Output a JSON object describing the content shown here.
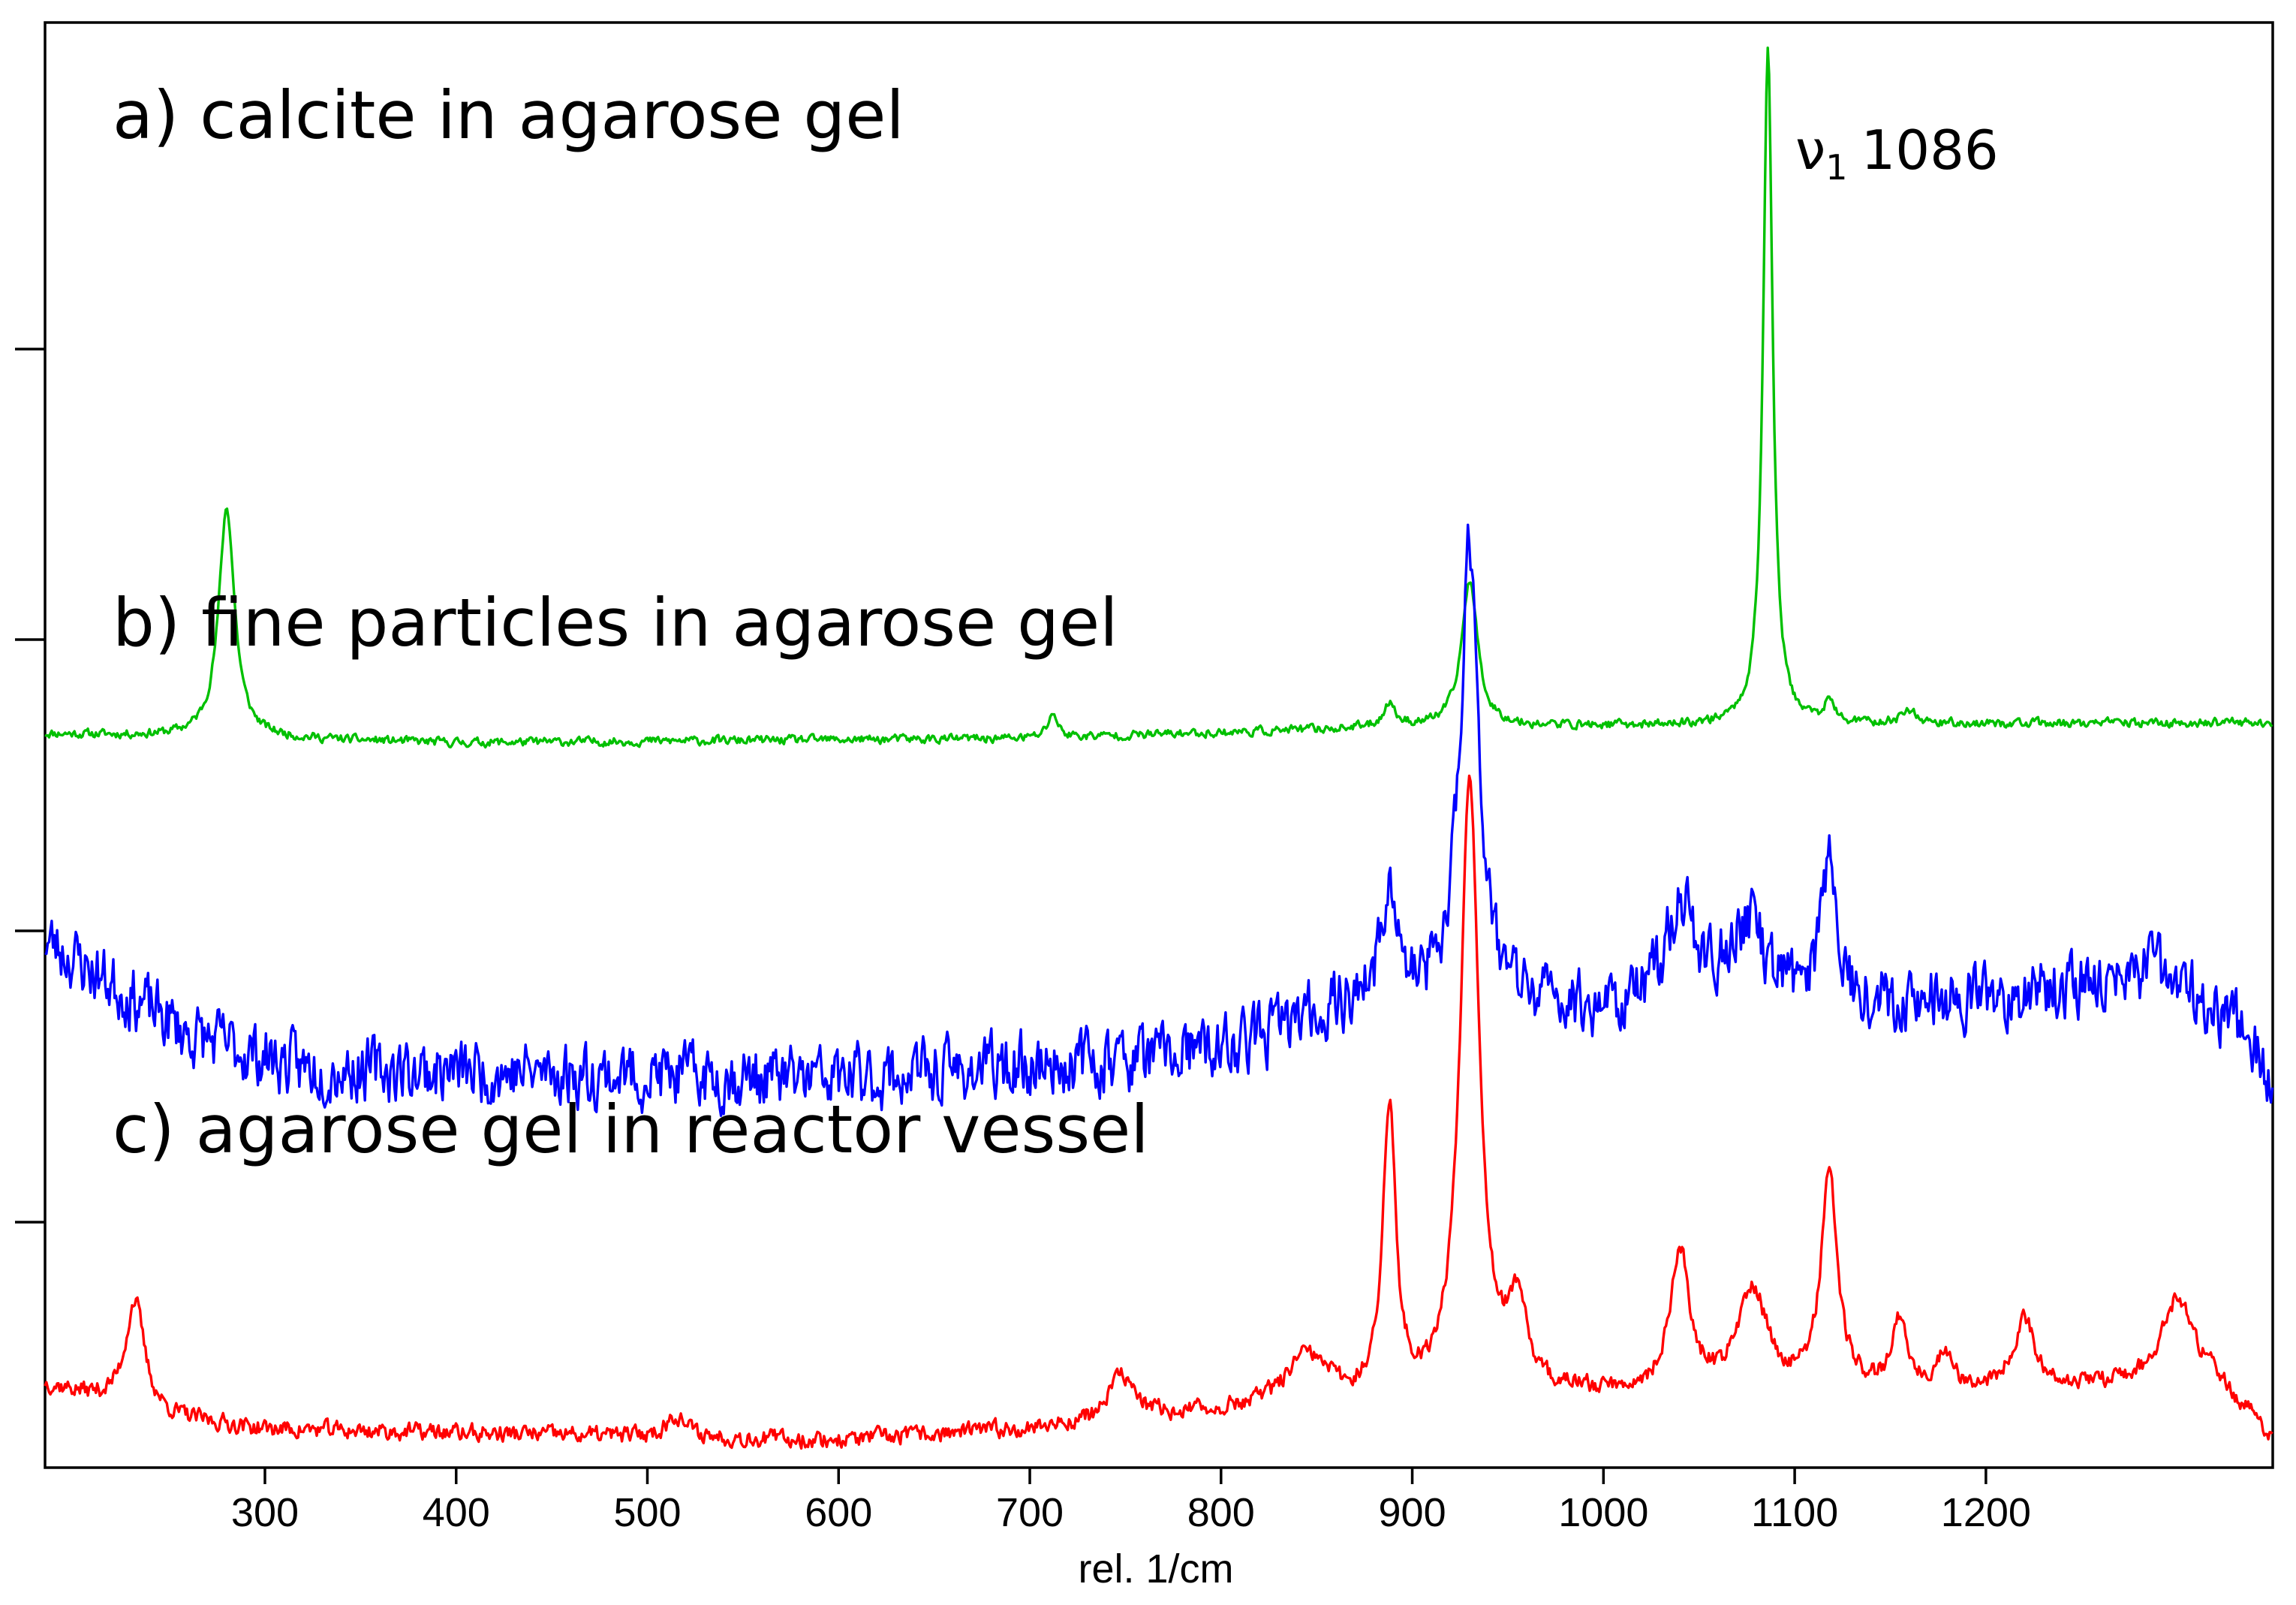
{
  "chart_data": {
    "type": "line",
    "title": "",
    "xlabel": "rel. 1/cm",
    "ylabel": "",
    "xlim": [
      185,
      1350
    ],
    "x_ticks": [
      300,
      400,
      500,
      600,
      700,
      800,
      900,
      1000,
      1100,
      1200
    ],
    "x_tick_labels": [
      "300",
      "400",
      "500",
      "600",
      "700",
      "800",
      "900",
      "1000",
      "1100",
      "1200"
    ],
    "y_axis": "arbitrary intensity, traces vertically offset, 4 unlabeled ticks",
    "series": [
      {
        "name": "a) calcite in agarose gel",
        "color": "#00c000",
        "baseline": 3.25,
        "noise": 0.03,
        "seed": 11,
        "peaks": [
          [
            280,
            1.02,
            5
          ],
          [
            712,
            0.11,
            3
          ],
          [
            888,
            0.1,
            4
          ],
          [
            930,
            0.65,
            5
          ],
          [
            1086,
            3.0,
            3
          ],
          [
            1118,
            0.09,
            3
          ],
          [
            1160,
            0.06,
            5
          ]
        ],
        "drift": [
          [
            185,
            0
          ],
          [
            400,
            -0.04
          ],
          [
            700,
            -0.02
          ],
          [
            900,
            0.03
          ],
          [
            1350,
            0.05
          ]
        ]
      },
      {
        "name": "b) fine particles in agarose gel",
        "color": "#0000ff",
        "baseline": 1.72,
        "noise": 0.22,
        "seed": 23,
        "peaks": [
          [
            888,
            0.55,
            4
          ],
          [
            930,
            2.05,
            6
          ],
          [
            1040,
            0.45,
            9
          ],
          [
            1075,
            0.35,
            12
          ],
          [
            1118,
            0.65,
            5
          ]
        ],
        "drift": [
          [
            185,
            0.62
          ],
          [
            260,
            0.2
          ],
          [
            320,
            0.05
          ],
          [
            600,
            0.0
          ],
          [
            800,
            0.12
          ],
          [
            870,
            0.35
          ],
          [
            1000,
            0.3
          ],
          [
            1200,
            0.35
          ],
          [
            1290,
            0.48
          ],
          [
            1330,
            0.25
          ],
          [
            1350,
            0.0
          ]
        ]
      },
      {
        "name": "c) agarose gel in reactor vessel",
        "color": "#ff0000",
        "baseline": 0.12,
        "noise": 0.06,
        "seed": 37,
        "peaks": [
          [
            232,
            0.48,
            6
          ],
          [
            515,
            0.1,
            6
          ],
          [
            748,
            0.2,
            8
          ],
          [
            845,
            0.22,
            14
          ],
          [
            888,
            1.3,
            4
          ],
          [
            930,
            2.75,
            6
          ],
          [
            955,
            0.35,
            6
          ],
          [
            1040,
            0.62,
            6
          ],
          [
            1078,
            0.45,
            9
          ],
          [
            1118,
            0.98,
            5
          ],
          [
            1155,
            0.3,
            5
          ],
          [
            1178,
            0.15,
            5
          ],
          [
            1220,
            0.3,
            7
          ],
          [
            1300,
            0.38,
            10
          ]
        ],
        "drift": [
          [
            185,
            0.25
          ],
          [
            250,
            0.1
          ],
          [
            300,
            0.05
          ],
          [
            600,
            0.0
          ],
          [
            700,
            0.05
          ],
          [
            800,
            0.12
          ],
          [
            1000,
            0.2
          ],
          [
            1200,
            0.22
          ],
          [
            1320,
            0.25
          ],
          [
            1350,
            0.0
          ]
        ]
      }
    ],
    "annotations": [
      {
        "text": "ν",
        "subscript": "1",
        "value": "1086"
      }
    ]
  }
}
